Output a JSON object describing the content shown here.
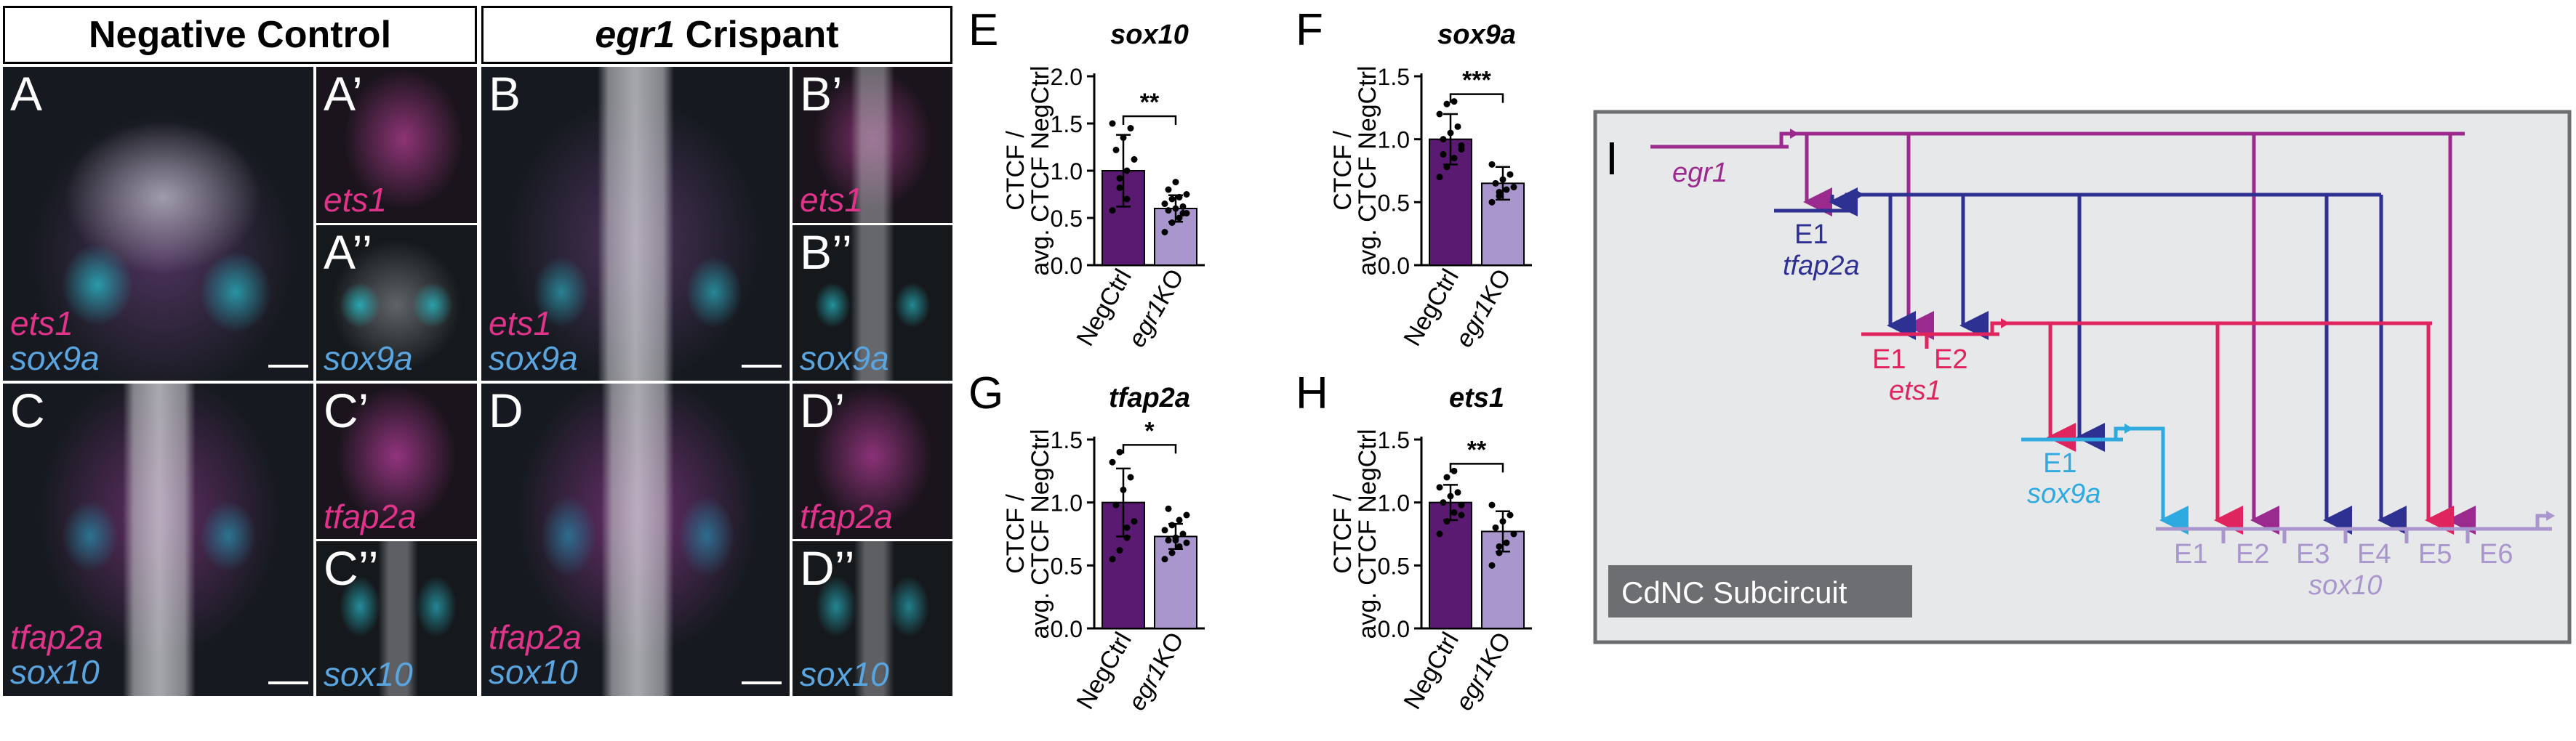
{
  "headers": {
    "left": "Negative Control",
    "right_gene": "egr1",
    "right_suffix": " Crispant"
  },
  "images": {
    "A": {
      "letter": "A",
      "m1": "ets1",
      "m2": "sox9a"
    },
    "A1": {
      "letter": "A’",
      "m1": "ets1"
    },
    "A2": {
      "letter": "A’’",
      "m2": "sox9a"
    },
    "B": {
      "letter": "B",
      "m1": "ets1",
      "m2": "sox9a"
    },
    "B1": {
      "letter": "B’",
      "m1": "ets1"
    },
    "B2": {
      "letter": "B’’",
      "m2": "sox9a"
    },
    "C": {
      "letter": "C",
      "m1": "tfap2a",
      "m2": "sox10"
    },
    "C1": {
      "letter": "C’",
      "m1": "tfap2a"
    },
    "C2": {
      "letter": "C’’",
      "m2": "sox10"
    },
    "D": {
      "letter": "D",
      "m1": "tfap2a",
      "m2": "sox10"
    },
    "D1": {
      "letter": "D’",
      "m1": "tfap2a"
    },
    "D2": {
      "letter": "D’’",
      "m2": "sox10"
    }
  },
  "colors": {
    "ets_magenta": "#e0338a",
    "sox_blue": "#5aa5e0",
    "negctrl_bar": "#5b1a72",
    "ko_bar": "#a996cd",
    "egr1": "#9b2a8e",
    "tfap2a": "#2f3192",
    "ets1": "#e0245e",
    "sox9a": "#2eaae1",
    "sox10": "#a996cd",
    "grn_bg": "#e7e8e9"
  },
  "chart_data": [
    {
      "panel": "E",
      "type": "bar",
      "title": "sox10",
      "ylabel_line1": "CTCF /",
      "ylabel_line2": "avg. CTCF NegCtrl",
      "categories": [
        "NegCtrl",
        "egr1KO"
      ],
      "category_gene": [
        "",
        "egr1"
      ],
      "category_suffix": [
        "NegCtrl",
        "KO"
      ],
      "values": [
        1.0,
        0.6
      ],
      "error": [
        0.38,
        0.14
      ],
      "ylim": [
        0,
        2.0
      ],
      "yticks": [
        "0.0",
        "0.5",
        "1.0",
        "1.5",
        "2.0"
      ],
      "significance": "**",
      "points": [
        [
          0.58,
          0.82,
          1.0,
          1.12,
          1.22,
          1.35,
          1.45,
          1.5,
          0.92,
          0.7
        ],
        [
          0.35,
          0.45,
          0.5,
          0.55,
          0.58,
          0.6,
          0.62,
          0.65,
          0.7,
          0.72,
          0.75,
          0.8,
          0.88,
          0.55
        ]
      ]
    },
    {
      "panel": "F",
      "type": "bar",
      "title": "sox9a",
      "ylabel_line1": "CTCF /",
      "ylabel_line2": "avg. CTCF NegCtrl",
      "categories": [
        "NegCtrl",
        "egr1KO"
      ],
      "category_gene": [
        "",
        "egr1"
      ],
      "category_suffix": [
        "NegCtrl",
        "KO"
      ],
      "values": [
        1.0,
        0.65
      ],
      "error": [
        0.2,
        0.13
      ],
      "ylim": [
        0,
        1.5
      ],
      "yticks": [
        "0.0",
        "0.5",
        "1.0",
        "1.5"
      ],
      "significance": "***",
      "points": [
        [
          0.7,
          0.78,
          0.85,
          0.92,
          1.0,
          1.05,
          1.1,
          1.2,
          1.28,
          1.3,
          0.95,
          0.88
        ],
        [
          0.5,
          0.55,
          0.6,
          0.62,
          0.65,
          0.68,
          0.72,
          0.8,
          0.58
        ]
      ]
    },
    {
      "panel": "G",
      "type": "bar",
      "title": "tfap2a",
      "ylabel_line1": "CTCF /",
      "ylabel_line2": "avg. CTCF NegCtrl",
      "categories": [
        "NegCtrl",
        "egr1KO"
      ],
      "category_gene": [
        "",
        "egr1"
      ],
      "category_suffix": [
        "NegCtrl",
        "KO"
      ],
      "values": [
        1.0,
        0.73
      ],
      "error": [
        0.27,
        0.1
      ],
      "ylim": [
        0,
        1.5
      ],
      "yticks": [
        "0.0",
        "0.5",
        "1.0",
        "1.5"
      ],
      "significance": "*",
      "points": [
        [
          0.55,
          0.62,
          0.72,
          0.85,
          0.98,
          1.1,
          1.2,
          1.32,
          1.4,
          0.8
        ],
        [
          0.55,
          0.6,
          0.65,
          0.68,
          0.7,
          0.72,
          0.75,
          0.78,
          0.82,
          0.86,
          0.9,
          0.95,
          0.7
        ]
      ]
    },
    {
      "panel": "H",
      "type": "bar",
      "title": "ets1",
      "ylabel_line1": "CTCF /",
      "ylabel_line2": "avg. CTCF NegCtrl",
      "categories": [
        "NegCtrl",
        "egr1KO"
      ],
      "category_gene": [
        "",
        "egr1"
      ],
      "category_suffix": [
        "NegCtrl",
        "KO"
      ],
      "values": [
        1.0,
        0.77
      ],
      "error": [
        0.14,
        0.16
      ],
      "ylim": [
        0,
        1.5
      ],
      "yticks": [
        "0.0",
        "0.5",
        "1.0",
        "1.5"
      ],
      "significance": "**",
      "points": [
        [
          0.75,
          0.85,
          0.92,
          0.98,
          1.0,
          1.05,
          1.08,
          1.12,
          1.2,
          1.25,
          0.9
        ],
        [
          0.5,
          0.6,
          0.68,
          0.75,
          0.8,
          0.85,
          0.9,
          0.98,
          0.65
        ]
      ]
    }
  ],
  "grn": {
    "letter": "I",
    "genes": {
      "egr1": "egr1",
      "tfap2a": "tfap2a",
      "ets1": "ets1",
      "sox9a": "sox9a",
      "sox10": "sox10"
    },
    "tfap2a_elements": [
      "E1"
    ],
    "ets1_elements": [
      "E1",
      "E2"
    ],
    "sox9a_elements": [
      "E1"
    ],
    "sox10_elements": [
      "E1",
      "E2",
      "E3",
      "E4",
      "E5",
      "E6"
    ],
    "subcircuit_label": "CdNC Subcircuit"
  }
}
